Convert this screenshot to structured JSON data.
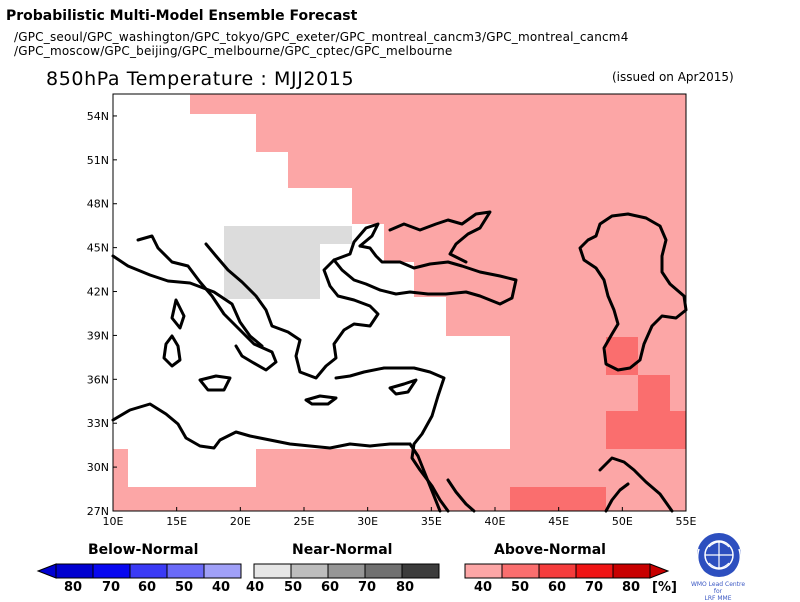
{
  "header": {
    "title": "Probabilistic Multi-Model Ensemble Forecast",
    "models_line1": "/GPC_seoul/GPC_washington/GPC_tokyo/GPC_exeter/GPC_montreal_cancm3/GPC_montreal_cancm4",
    "models_line2": "/GPC_moscow/GPC_beijing/GPC_melbourne/GPC_cptec/GPC_melbourne"
  },
  "map": {
    "title": "850hPa Temperature : MJJ2015",
    "issued": "(issued on Apr2015)",
    "lon_range": [
      10,
      55
    ],
    "lat_range": [
      27,
      55.5
    ],
    "x_ticks": [
      "10E",
      "15E",
      "20E",
      "25E",
      "30E",
      "35E",
      "40E",
      "45E",
      "50E",
      "55E"
    ],
    "y_ticks": [
      "27N",
      "30N",
      "33N",
      "36N",
      "39N",
      "42N",
      "45N",
      "48N",
      "51N",
      "54N"
    ],
    "colors": {
      "white": "#ffffff",
      "near_normal_40": "#dcdcdc",
      "above_40": "#fca6a6",
      "above_50": "#fa6e6e",
      "coast": "#000000"
    }
  },
  "legend": {
    "below": {
      "title": "Below-Normal",
      "labels": [
        "80",
        "70",
        "60",
        "50",
        "40"
      ],
      "colors": [
        "#0000d0",
        "#0808f0",
        "#3a3af5",
        "#6a6af8",
        "#a0a0f8"
      ]
    },
    "near": {
      "title": "Near-Normal",
      "labels": [
        "40",
        "50",
        "60",
        "70",
        "80"
      ],
      "colors": [
        "#e6e6e6",
        "#bdbdbd",
        "#969696",
        "#707070",
        "#3c3c3c"
      ]
    },
    "above": {
      "title": "Above-Normal",
      "labels": [
        "40",
        "50",
        "60",
        "70",
        "80"
      ],
      "colors": [
        "#fca6a6",
        "#fa6e6e",
        "#f53c3c",
        "#f01414",
        "#c80000"
      ],
      "unit": "[%]"
    }
  },
  "logo": {
    "caption_line1": "WMO Lead Centre for",
    "caption_line2": "LRF MME"
  }
}
